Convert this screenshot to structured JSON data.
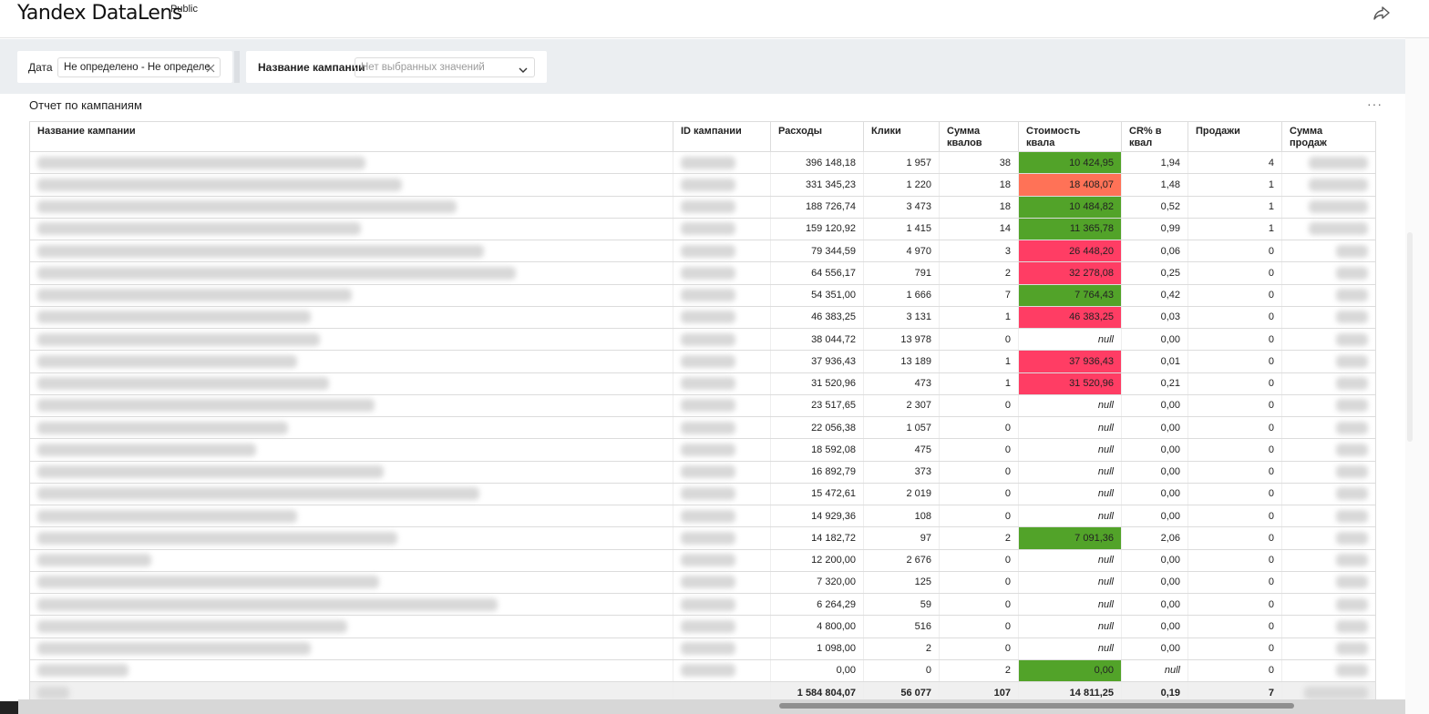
{
  "header": {
    "logo": "Yandex DataLens",
    "logo_sup": "Public",
    "share_icon": "share-icon"
  },
  "filters": {
    "date_label": "Дата",
    "date_value": "Не определено - Не определе",
    "campaign_label": "Название кампании",
    "campaign_placeholder": "Нет выбранных значений"
  },
  "widget": {
    "title": "Отчет по кампаниям",
    "menu": "···"
  },
  "table": {
    "columns": [
      {
        "line1": "Название кампании",
        "line2": ""
      },
      {
        "line1": "ID кампании",
        "line2": ""
      },
      {
        "line1": "Расходы",
        "line2": ""
      },
      {
        "line1": "Клики",
        "line2": ""
      },
      {
        "line1": "Сумма",
        "line2": "квалов"
      },
      {
        "line1": "Стоимость",
        "line2": "квала"
      },
      {
        "line1": "CR% в",
        "line2": "квал"
      },
      {
        "line1": "Продажи",
        "line2": ""
      },
      {
        "line1": "Сумма",
        "line2": "продаж"
      }
    ],
    "rows": [
      {
        "spend": "396 148,18",
        "clicks": "1 957",
        "quals": "38",
        "cost": "10 424,95",
        "cost_color": "#52a329",
        "cr": "1,94",
        "sales": "4",
        "name_w": 360
      },
      {
        "spend": "331 345,23",
        "clicks": "1 220",
        "quals": "18",
        "cost": "18 408,07",
        "cost_color": "#ff7257",
        "cr": "1,48",
        "sales": "1",
        "name_w": 400
      },
      {
        "spend": "188 726,74",
        "clicks": "3 473",
        "quals": "18",
        "cost": "10 484,82",
        "cost_color": "#52a329",
        "cr": "0,52",
        "sales": "1",
        "name_w": 460
      },
      {
        "spend": "159 120,92",
        "clicks": "1 415",
        "quals": "14",
        "cost": "11 365,78",
        "cost_color": "#52a329",
        "cr": "0,99",
        "sales": "1",
        "name_w": 355
      },
      {
        "spend": "79 344,59",
        "clicks": "4 970",
        "quals": "3",
        "cost": "26 448,20",
        "cost_color": "#ff3d64",
        "cr": "0,06",
        "sales": "0",
        "name_w": 490
      },
      {
        "spend": "64 556,17",
        "clicks": "791",
        "quals": "2",
        "cost": "32 278,08",
        "cost_color": "#ff3d64",
        "cr": "0,25",
        "sales": "0",
        "name_w": 525
      },
      {
        "spend": "54 351,00",
        "clicks": "1 666",
        "quals": "7",
        "cost": "7 764,43",
        "cost_color": "#52a329",
        "cr": "0,42",
        "sales": "0",
        "name_w": 345
      },
      {
        "spend": "46 383,25",
        "clicks": "3 131",
        "quals": "1",
        "cost": "46 383,25",
        "cost_color": "#ff3d64",
        "cr": "0,03",
        "sales": "0",
        "name_w": 300
      },
      {
        "spend": "38 044,72",
        "clicks": "13 978",
        "quals": "0",
        "cost": "null",
        "cost_color": "",
        "cr": "0,00",
        "sales": "0",
        "name_w": 310
      },
      {
        "spend": "37 936,43",
        "clicks": "13 189",
        "quals": "1",
        "cost": "37 936,43",
        "cost_color": "#ff3d64",
        "cr": "0,01",
        "sales": "0",
        "name_w": 285
      },
      {
        "spend": "31 520,96",
        "clicks": "473",
        "quals": "1",
        "cost": "31 520,96",
        "cost_color": "#ff3d64",
        "cr": "0,21",
        "sales": "0",
        "name_w": 320
      },
      {
        "spend": "23 517,65",
        "clicks": "2 307",
        "quals": "0",
        "cost": "null",
        "cost_color": "",
        "cr": "0,00",
        "sales": "0",
        "name_w": 370
      },
      {
        "spend": "22 056,38",
        "clicks": "1 057",
        "quals": "0",
        "cost": "null",
        "cost_color": "",
        "cr": "0,00",
        "sales": "0",
        "name_w": 275
      },
      {
        "spend": "18 592,08",
        "clicks": "475",
        "quals": "0",
        "cost": "null",
        "cost_color": "",
        "cr": "0,00",
        "sales": "0",
        "name_w": 240
      },
      {
        "spend": "16 892,79",
        "clicks": "373",
        "quals": "0",
        "cost": "null",
        "cost_color": "",
        "cr": "0,00",
        "sales": "0",
        "name_w": 380
      },
      {
        "spend": "15 472,61",
        "clicks": "2 019",
        "quals": "0",
        "cost": "null",
        "cost_color": "",
        "cr": "0,00",
        "sales": "0",
        "name_w": 485
      },
      {
        "spend": "14 929,36",
        "clicks": "108",
        "quals": "0",
        "cost": "null",
        "cost_color": "",
        "cr": "0,00",
        "sales": "0",
        "name_w": 285
      },
      {
        "spend": "14 182,72",
        "clicks": "97",
        "quals": "2",
        "cost": "7 091,36",
        "cost_color": "#52a329",
        "cr": "2,06",
        "sales": "0",
        "name_w": 395
      },
      {
        "spend": "12 200,00",
        "clicks": "2 676",
        "quals": "0",
        "cost": "null",
        "cost_color": "",
        "cr": "0,00",
        "sales": "0",
        "name_w": 125
      },
      {
        "spend": "7 320,00",
        "clicks": "125",
        "quals": "0",
        "cost": "null",
        "cost_color": "",
        "cr": "0,00",
        "sales": "0",
        "name_w": 375
      },
      {
        "spend": "6 264,29",
        "clicks": "59",
        "quals": "0",
        "cost": "null",
        "cost_color": "",
        "cr": "0,00",
        "sales": "0",
        "name_w": 505
      },
      {
        "spend": "4 800,00",
        "clicks": "516",
        "quals": "0",
        "cost": "null",
        "cost_color": "",
        "cr": "0,00",
        "sales": "0",
        "name_w": 340
      },
      {
        "spend": "1 098,00",
        "clicks": "2",
        "quals": "0",
        "cost": "null",
        "cost_color": "",
        "cr": "0,00",
        "sales": "0",
        "name_w": 300
      },
      {
        "spend": "0,00",
        "clicks": "0",
        "quals": "2",
        "cost": "0,00",
        "cost_color": "#52a329",
        "cr": "null",
        "sales": "0",
        "name_w": 100
      }
    ],
    "total": {
      "spend": "1 584 804,07",
      "clicks": "56 077",
      "quals": "107",
      "cost": "14 811,25",
      "cr": "0,19",
      "sales": "7"
    }
  }
}
